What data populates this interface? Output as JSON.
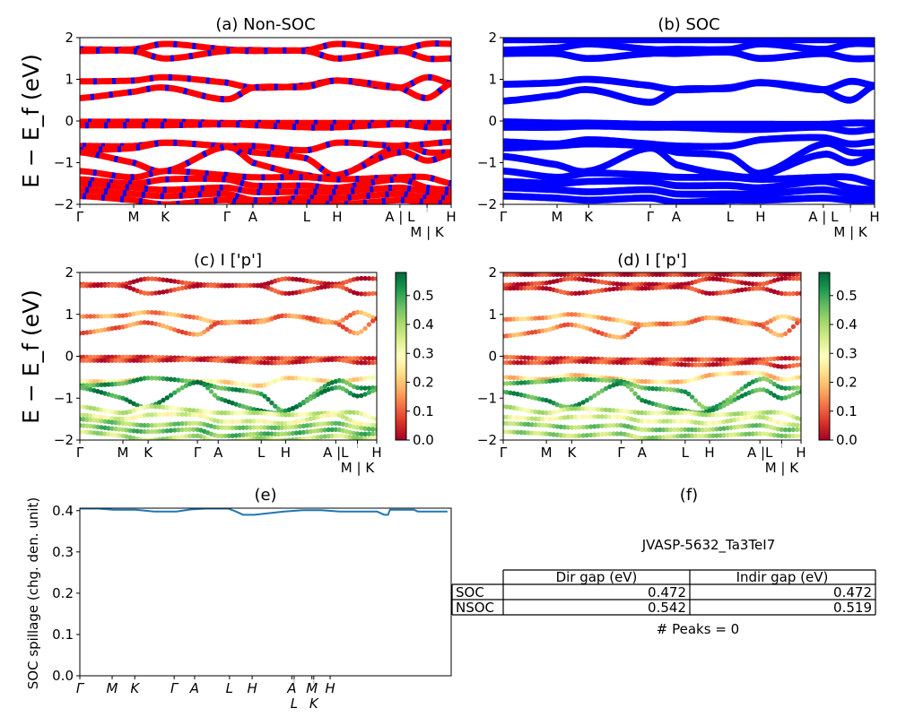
{
  "chart_data": [
    {
      "id": "a",
      "type": "line",
      "title": "(a) Non-SOC",
      "ylabel": "E − E_f (eV)",
      "ylim": [
        -2,
        2
      ],
      "yticks": [
        -2,
        -1,
        0,
        1,
        2
      ],
      "xticks": [
        0,
        0.145,
        0.23,
        0.396,
        0.466,
        0.611,
        0.693,
        0.862,
        0.935,
        1.0
      ],
      "xticklabels": [
        "Γ",
        "M",
        "K",
        "Γ",
        "A",
        "L",
        "H",
        "A | L",
        "M | K",
        "H"
      ],
      "colors": [
        "#ff0000",
        "#0000ff"
      ],
      "bands": [
        [
          1.72,
          1.72,
          1.85,
          1.72,
          1.7,
          1.7,
          1.85,
          1.72,
          1.85,
          1.85
        ],
        [
          1.68,
          1.68,
          1.5,
          1.68,
          1.68,
          1.68,
          1.5,
          1.68,
          1.5,
          1.5
        ],
        [
          0.95,
          0.97,
          1.05,
          0.92,
          0.8,
          0.85,
          0.97,
          0.8,
          1.05,
          0.9
        ],
        [
          0.55,
          0.7,
          0.8,
          0.52,
          0.8,
          0.82,
          0.97,
          0.8,
          0.55,
          0.9
        ],
        [
          -0.02,
          -0.02,
          -0.02,
          -0.05,
          -0.05,
          -0.05,
          -0.05,
          -0.05,
          -0.05,
          -0.05
        ],
        [
          -0.1,
          -0.1,
          -0.1,
          -0.08,
          -0.1,
          -0.15,
          -0.15,
          -0.08,
          -0.15,
          -0.15
        ],
        [
          -0.6,
          -0.6,
          -0.52,
          -0.6,
          -0.6,
          -0.7,
          -0.52,
          -0.6,
          -0.55,
          -0.5
        ],
        [
          -0.7,
          -0.65,
          -0.52,
          -0.62,
          -0.75,
          -0.9,
          -1.3,
          -0.6,
          -0.75,
          -0.75
        ],
        [
          -0.75,
          -1.0,
          -1.2,
          -0.62,
          -1.0,
          -1.3,
          -1.3,
          -0.75,
          -0.95,
          -0.8
        ],
        [
          -1.2,
          -1.35,
          -1.2,
          -1.3,
          -1.35,
          -1.35,
          -1.4,
          -1.35,
          -1.35,
          -1.5
        ],
        [
          -1.4,
          -1.5,
          -1.4,
          -1.4,
          -1.55,
          -1.55,
          -1.6,
          -1.4,
          -1.6,
          -1.65
        ],
        [
          -1.5,
          -1.6,
          -1.65,
          -1.6,
          -1.7,
          -1.7,
          -1.7,
          -1.6,
          -1.7,
          -1.75
        ],
        [
          -1.65,
          -1.75,
          -1.8,
          -1.75,
          -1.9,
          -1.85,
          -1.85,
          -1.75,
          -1.85,
          -1.85
        ],
        [
          -1.8,
          -1.9,
          -2.0,
          -1.9,
          -2.05,
          -1.95,
          -2.0,
          -1.9,
          -1.95,
          -1.98
        ]
      ]
    },
    {
      "id": "b",
      "type": "line",
      "title": "(b) SOC",
      "ylim": [
        -2,
        2
      ],
      "yticks": [
        -2,
        -1,
        0,
        1,
        2
      ],
      "xticks": [
        0,
        0.145,
        0.23,
        0.396,
        0.466,
        0.611,
        0.693,
        0.862,
        0.935,
        1.0
      ],
      "xticklabels": [
        "Γ",
        "M",
        "K",
        "Γ",
        "A",
        "L",
        "H",
        "A | L",
        "M | K",
        "H"
      ],
      "colors": [
        "#0000ff"
      ],
      "bands": [
        [
          1.95,
          1.95,
          1.95,
          1.95,
          1.95,
          1.95,
          1.95,
          1.95,
          1.95,
          1.95
        ],
        [
          1.7,
          1.75,
          1.85,
          1.72,
          1.72,
          1.72,
          1.85,
          1.72,
          1.85,
          1.85
        ],
        [
          1.62,
          1.62,
          1.5,
          1.62,
          1.62,
          1.65,
          1.5,
          1.62,
          1.5,
          1.5
        ],
        [
          0.88,
          0.92,
          1.0,
          0.85,
          0.75,
          0.8,
          0.92,
          0.75,
          0.95,
          0.85
        ],
        [
          0.48,
          0.62,
          0.75,
          0.45,
          0.75,
          0.78,
          0.92,
          0.75,
          0.5,
          0.85
        ],
        [
          -0.02,
          -0.05,
          -0.05,
          -0.08,
          -0.08,
          -0.08,
          -0.08,
          -0.08,
          -0.05,
          -0.05
        ],
        [
          -0.15,
          -0.15,
          -0.12,
          -0.15,
          -0.15,
          -0.2,
          -0.2,
          -0.15,
          -0.25,
          -0.2
        ],
        [
          -0.5,
          -0.55,
          -0.45,
          -0.55,
          -0.6,
          -0.6,
          -0.45,
          -0.4,
          -0.55,
          -0.5
        ],
        [
          -0.65,
          -0.6,
          -0.55,
          -0.6,
          -0.75,
          -0.85,
          -1.25,
          -0.55,
          -0.75,
          -0.75
        ],
        [
          -0.85,
          -1.05,
          -1.2,
          -0.65,
          -1.05,
          -1.3,
          -1.3,
          -0.8,
          -1.0,
          -0.85
        ],
        [
          -1.2,
          -1.35,
          -1.25,
          -1.3,
          -1.35,
          -1.35,
          -1.4,
          -1.35,
          -1.35,
          -1.5
        ],
        [
          -1.45,
          -1.5,
          -1.45,
          -1.45,
          -1.55,
          -1.55,
          -1.6,
          -1.45,
          -1.6,
          -1.65
        ],
        [
          -1.6,
          -1.65,
          -1.7,
          -1.65,
          -1.75,
          -1.75,
          -1.75,
          -1.65,
          -1.75,
          -1.75
        ],
        [
          -1.8,
          -1.85,
          -1.9,
          -1.85,
          -1.95,
          -1.9,
          -1.9,
          -1.85,
          -1.9,
          -1.9
        ]
      ]
    },
    {
      "id": "c",
      "type": "scatter",
      "title": "(c)  I ['p']",
      "ylabel": "E − E_f (eV)",
      "ylim": [
        -2,
        2
      ],
      "yticks": [
        -2,
        -1,
        0,
        1,
        2
      ],
      "xticks": [
        0,
        0.145,
        0.23,
        0.396,
        0.466,
        0.611,
        0.693,
        0.862,
        0.935,
        1.0
      ],
      "xticklabels": [
        "Γ",
        "M",
        "K",
        "Γ",
        "A",
        "L",
        "H",
        "A |L",
        "M | K",
        "H"
      ],
      "colormap": "RdYlGn",
      "clim": [
        0,
        0.58
      ],
      "cbar_ticks": [
        0.0,
        0.1,
        0.2,
        0.3,
        0.4,
        0.5
      ],
      "band_source": "a",
      "weights": [
        0.05,
        0.06,
        0.16,
        0.13,
        0.08,
        0.07,
        0.25,
        0.5,
        0.52,
        0.35,
        0.32,
        0.42,
        0.45,
        0.38
      ]
    },
    {
      "id": "d",
      "type": "scatter",
      "title": "(d) I ['p']",
      "ylim": [
        -2,
        2
      ],
      "yticks": [
        -2,
        -1,
        0,
        1,
        2
      ],
      "xticks": [
        0,
        0.145,
        0.23,
        0.396,
        0.466,
        0.611,
        0.693,
        0.862,
        0.935,
        1.0
      ],
      "xticklabels": [
        "Γ",
        "M",
        "K",
        "Γ",
        "A",
        "L",
        "H",
        "A |L",
        "M | K",
        "H"
      ],
      "colormap": "RdYlGn",
      "clim": [
        0,
        0.58
      ],
      "cbar_ticks": [
        0.0,
        0.1,
        0.2,
        0.3,
        0.4,
        0.5
      ],
      "band_source": "b",
      "weights": [
        0.05,
        0.05,
        0.06,
        0.18,
        0.14,
        0.08,
        0.07,
        0.22,
        0.48,
        0.5,
        0.36,
        0.33,
        0.42,
        0.4
      ]
    },
    {
      "id": "e",
      "type": "line",
      "title": "(e)",
      "ylabel": "SOC spillage (chg. den. unit)",
      "ylim": [
        0,
        0.406
      ],
      "yticks": [
        0.0,
        0.1,
        0.2,
        0.3,
        0.4
      ],
      "xticks": [
        0,
        0.087,
        0.148,
        0.254,
        0.309,
        0.403,
        0.464,
        0.571,
        0.577,
        0.625,
        0.63,
        0.674
      ],
      "xticklabels": [
        "Γ",
        "M",
        "K",
        "Γ",
        "A",
        "L",
        "H",
        "A",
        "L",
        "M",
        "K",
        "H"
      ],
      "color": "#1f77b4",
      "x": [
        0,
        0.05,
        0.09,
        0.15,
        0.2,
        0.26,
        0.3,
        0.34,
        0.4,
        0.42,
        0.44,
        0.47,
        0.5,
        0.55,
        0.6,
        0.65,
        0.7,
        0.75,
        0.8,
        0.82,
        0.83,
        0.835,
        0.9,
        0.91,
        0.99
      ],
      "y": [
        0.405,
        0.405,
        0.402,
        0.402,
        0.398,
        0.398,
        0.403,
        0.405,
        0.405,
        0.398,
        0.39,
        0.39,
        0.393,
        0.398,
        0.401,
        0.401,
        0.398,
        0.398,
        0.398,
        0.39,
        0.39,
        0.402,
        0.402,
        0.398,
        0.398
      ]
    },
    {
      "id": "f",
      "type": "table",
      "title": "(f)",
      "subtitle": "JVASP-5632_Ta3TeI7",
      "columns": [
        "Dir gap (eV)",
        "Indir gap (eV)"
      ],
      "rows": [
        {
          "label": "SOC",
          "values": [
            "0.472",
            "0.472"
          ]
        },
        {
          "label": "NSOC",
          "values": [
            "0.542",
            "0.519"
          ]
        }
      ],
      "footer": "# Peaks = 0"
    }
  ]
}
